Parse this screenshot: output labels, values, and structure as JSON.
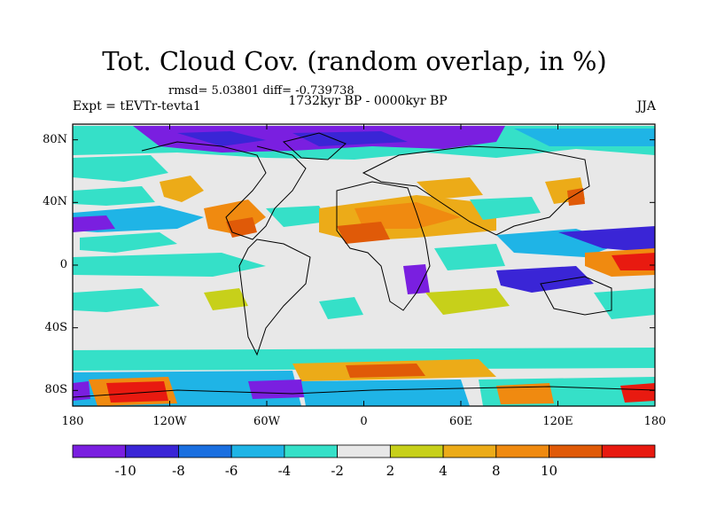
{
  "title": "Tot. Cloud Cov. (random overlap, in %)",
  "stats": "rmsd= 5.03801 diff= -0.739738",
  "period": "1732kyr BP - 0000kyr BP",
  "experiment": "Expt = tEVTr-tevta1",
  "season": "JJA",
  "map": {
    "lat_labels": [
      "80N",
      "40N",
      "0",
      "40S",
      "80S"
    ],
    "lat_values": [
      80,
      40,
      0,
      -40,
      -80
    ],
    "lon_labels": [
      "180",
      "120W",
      "60W",
      "0",
      "60E",
      "120E",
      "180"
    ],
    "lon_values": [
      -180,
      -120,
      -60,
      0,
      60,
      120,
      180
    ]
  },
  "colorbar": {
    "labels": [
      "-10",
      "-8",
      "-6",
      "-4",
      "-2",
      "2",
      "4",
      "8",
      "10"
    ],
    "colors": [
      "#7a1fe0",
      "#3a25d6",
      "#1a6fe0",
      "#1fb4e6",
      "#35e0c8",
      "#e8e8e8",
      "#c7d01a",
      "#ecab18",
      "#f08a10",
      "#e05a08",
      "#e81a10"
    ]
  }
}
